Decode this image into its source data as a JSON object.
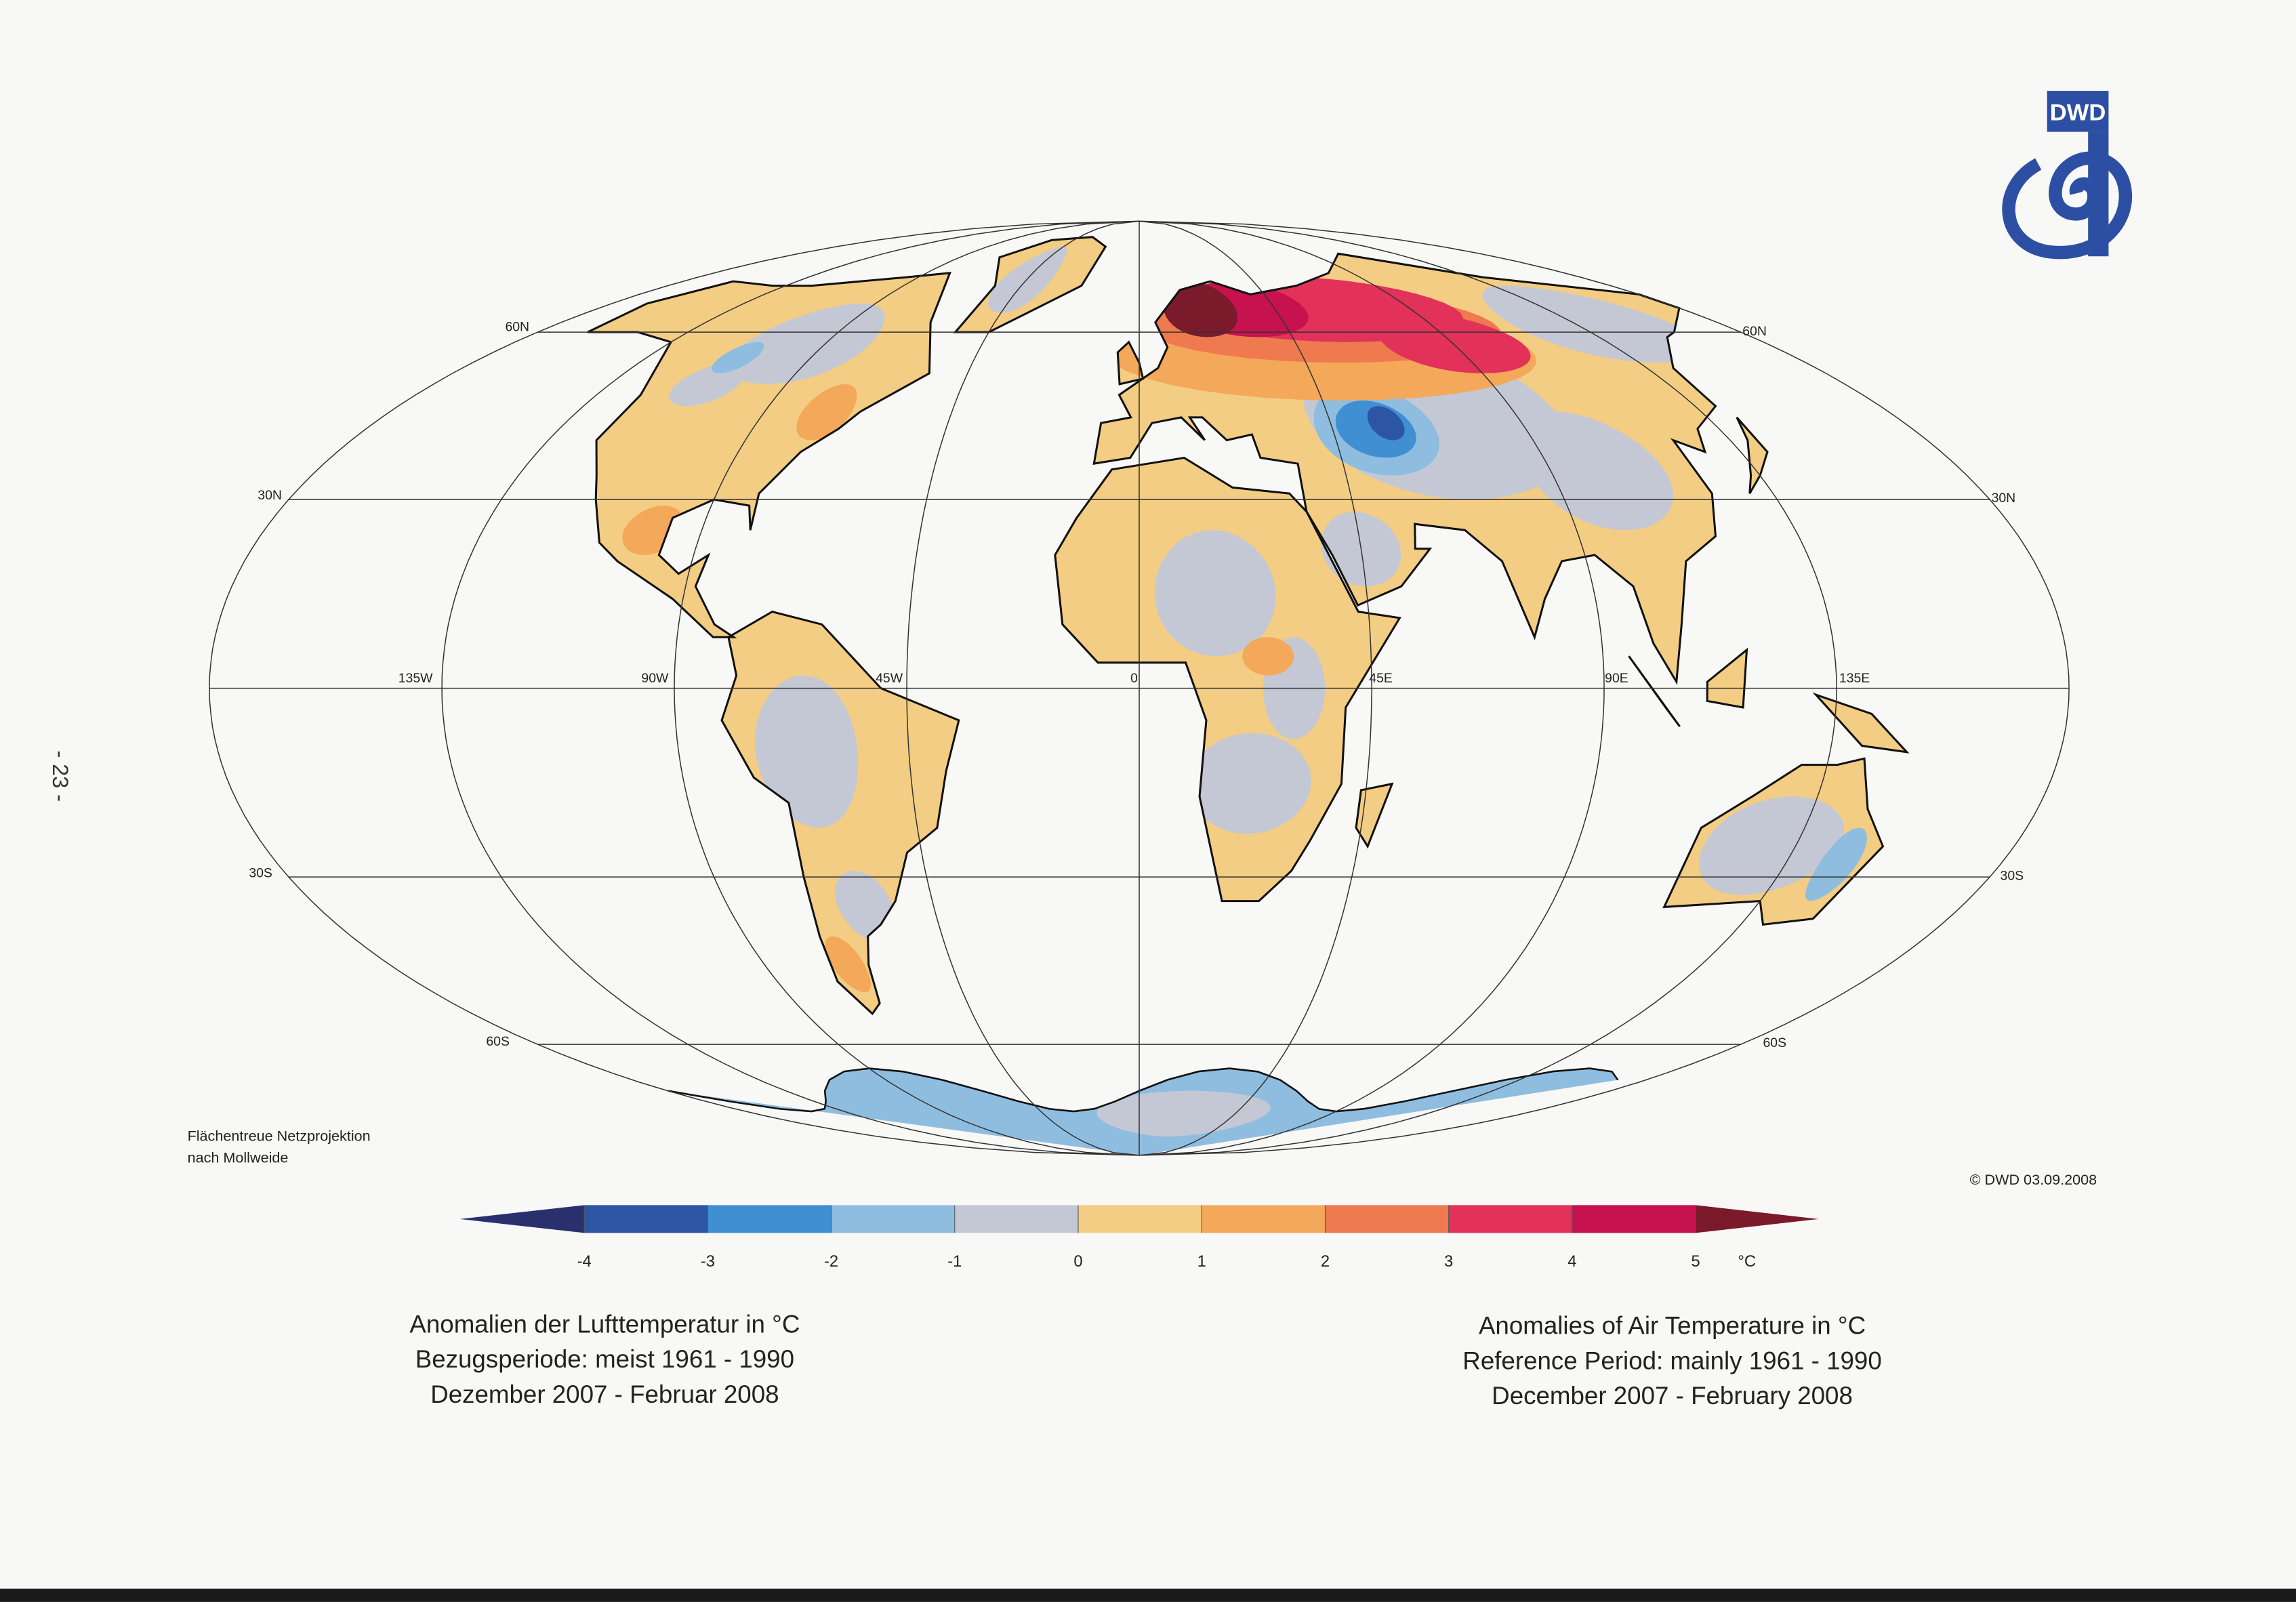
{
  "page_number": "- 23 -",
  "logo": "DWD",
  "map": {
    "graticule_labels": {
      "left": [
        "60N",
        "30N",
        "30S",
        "60S"
      ],
      "right": [
        "60N",
        "30N",
        "30S",
        "60S"
      ],
      "equator": [
        "135W",
        "90W",
        "45W",
        "0",
        "45E",
        "90E",
        "135E"
      ]
    },
    "projection_note": [
      "Flächentreue Netzprojektion",
      "nach Mollweide"
    ]
  },
  "copyright": "© DWD 03.09.2008",
  "colorbar": {
    "ticks": [
      -4,
      -3,
      -2,
      -1,
      0,
      1,
      2,
      3,
      4,
      5
    ],
    "unit": "°C",
    "colors": [
      "#2a2f6e",
      "#2c55a3",
      "#3f8fd2",
      "#8fbde0",
      "#c4c8d4",
      "#f3cd83",
      "#f4a85a",
      "#ef7a4f",
      "#e2325a",
      "#c6124f",
      "#7a1a2b"
    ]
  },
  "caption_de": [
    "Anomalien der Lufttemperatur in °C",
    "Bezugsperiode: meist 1961 - 1990",
    "Dezember 2007 - Februar 2008"
  ],
  "caption_en": [
    "Anomalies of Air Temperature in °C",
    "Reference Period: mainly 1961 - 1990",
    "December 2007 - February 2008"
  ]
}
